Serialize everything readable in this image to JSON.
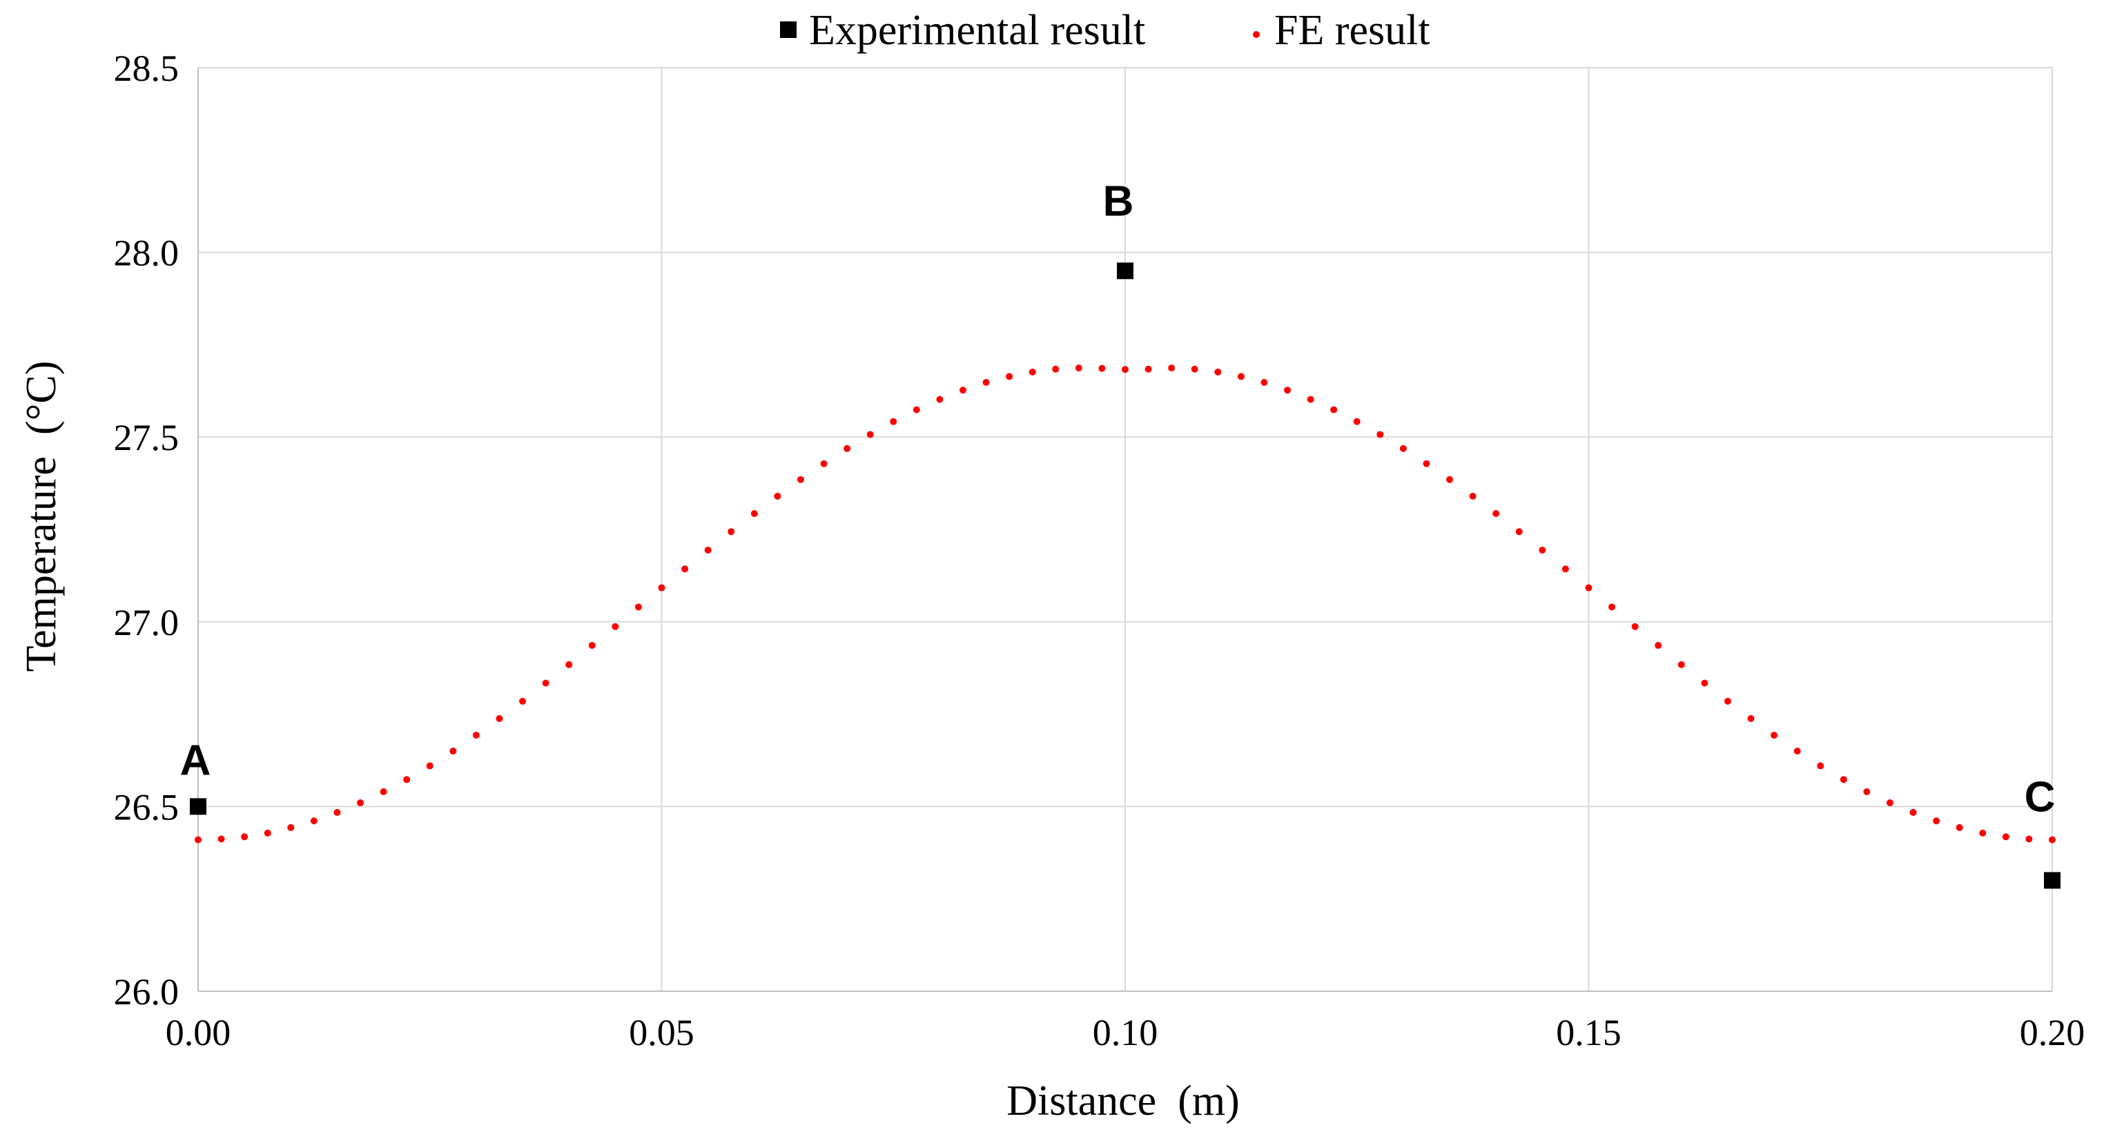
{
  "chart_data": {
    "type": "scatter",
    "title": "",
    "xlabel": "Distance  (m)",
    "ylabel": "Temperature  (°C)",
    "xlim": [
      0.0,
      0.2
    ],
    "ylim": [
      26.0,
      28.5
    ],
    "x_ticks": [
      "0.00",
      "0.05",
      "0.10",
      "0.15",
      "0.20"
    ],
    "y_ticks": [
      "26.0",
      "26.5",
      "27.0",
      "27.5",
      "28.0",
      "28.5"
    ],
    "grid": true,
    "legend_position": "top-center",
    "series": [
      {
        "name": "Experimental result",
        "marker": "square",
        "color": "#000000",
        "x": [
          0.0,
          0.1,
          0.2
        ],
        "y": [
          26.5,
          27.95,
          26.3
        ],
        "labels": [
          "A",
          "B",
          "C"
        ]
      },
      {
        "name": "FE result",
        "marker": "dot",
        "color": "#ff0000",
        "x": [
          0.0,
          0.0025,
          0.005,
          0.0075,
          0.01,
          0.0125,
          0.015,
          0.0175,
          0.02,
          0.0225,
          0.025,
          0.0275,
          0.03,
          0.0325,
          0.035,
          0.0375,
          0.04,
          0.0425,
          0.045,
          0.0475,
          0.05,
          0.0525,
          0.055,
          0.0575,
          0.06,
          0.0625,
          0.065,
          0.0675,
          0.07,
          0.0725,
          0.075,
          0.0775,
          0.08,
          0.0825,
          0.085,
          0.0875,
          0.09,
          0.0925,
          0.095,
          0.0975,
          0.1,
          0.1025,
          0.105,
          0.1075,
          0.11,
          0.1125,
          0.115,
          0.1175,
          0.12,
          0.1225,
          0.125,
          0.1275,
          0.13,
          0.1325,
          0.135,
          0.1375,
          0.14,
          0.1425,
          0.145,
          0.1475,
          0.15,
          0.1525,
          0.155,
          0.1575,
          0.16,
          0.1625,
          0.165,
          0.1675,
          0.17,
          0.1725,
          0.175,
          0.1775,
          0.18,
          0.1825,
          0.185,
          0.1875,
          0.19,
          0.1925,
          0.195,
          0.1975,
          0.2
        ],
        "y": [
          26.41,
          26.412,
          26.418,
          26.428,
          26.443,
          26.461,
          26.484,
          26.51,
          26.54,
          26.573,
          26.61,
          26.65,
          26.693,
          26.738,
          26.785,
          26.834,
          26.884,
          26.936,
          26.987,
          27.04,
          27.092,
          27.143,
          27.194,
          27.244,
          27.293,
          27.34,
          27.385,
          27.428,
          27.469,
          27.507,
          27.542,
          27.574,
          27.602,
          27.627,
          27.648,
          27.664,
          27.676,
          27.684,
          27.687,
          27.686,
          27.683,
          27.684,
          27.687,
          27.684,
          27.676,
          27.664,
          27.648,
          27.627,
          27.602,
          27.574,
          27.542,
          27.507,
          27.469,
          27.428,
          27.385,
          27.34,
          27.293,
          27.244,
          27.194,
          27.143,
          27.092,
          27.04,
          26.987,
          26.936,
          26.884,
          26.834,
          26.785,
          26.738,
          26.693,
          26.65,
          26.61,
          26.573,
          26.54,
          26.51,
          26.484,
          26.461,
          26.443,
          26.428,
          26.418,
          26.412,
          26.41
        ]
      }
    ]
  }
}
